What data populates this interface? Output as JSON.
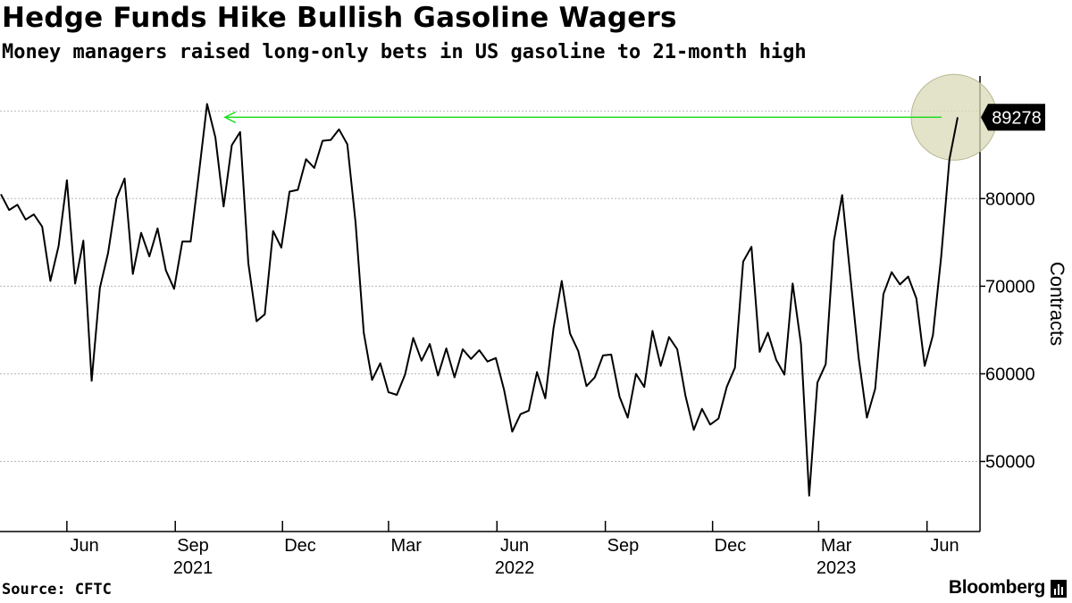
{
  "title": "Hedge Funds Hike Bullish Gasoline Wagers",
  "subtitle": "Money managers raised long-only bets in US gasoline to 21-month high",
  "source": "Source: CFTC",
  "brand": "Bloomberg",
  "chart_data": {
    "type": "line",
    "title": "Hedge Funds Hike Bullish Gasoline Wagers",
    "subtitle": "Money managers raised long-only bets in US gasoline to 21-month high",
    "ylabel": "Contracts",
    "ylim": [
      42000,
      94000
    ],
    "yticks": [
      50000,
      60000,
      70000,
      80000
    ],
    "y_axis_side": "right",
    "grid": true,
    "line_color": "#000000",
    "x_month_ticks": [
      "Jun",
      "Sep",
      "Dec",
      "Mar",
      "Jun",
      "Sep",
      "Dec",
      "Mar",
      "Jun"
    ],
    "x_year_labels": [
      {
        "label": "2021",
        "under_tick": 1
      },
      {
        "label": "2022",
        "under_tick": 4
      },
      {
        "label": "2023",
        "under_tick": 7
      }
    ],
    "start_date": "2021-04-06",
    "interval_days": 7,
    "values": [
      80500,
      78700,
      79300,
      77600,
      78200,
      76800,
      70600,
      74600,
      82100,
      70300,
      75200,
      59200,
      69800,
      73800,
      80000,
      82300,
      71400,
      76100,
      73400,
      76600,
      71800,
      69700,
      75100,
      75100,
      82800,
      90800,
      87000,
      79100,
      86100,
      87600,
      72600,
      66000,
      66800,
      76300,
      74400,
      80800,
      81000,
      84500,
      83500,
      86600,
      86700,
      87900,
      86200,
      77300,
      64700,
      59300,
      61200,
      57900,
      57600,
      59900,
      64100,
      61500,
      63400,
      59800,
      62900,
      59600,
      62800,
      61700,
      62700,
      61400,
      61800,
      58200,
      53400,
      55400,
      55800,
      60200,
      57200,
      65200,
      70600,
      64600,
      62600,
      58600,
      59600,
      62100,
      62200,
      57400,
      55000,
      60000,
      58500,
      64900,
      60900,
      64200,
      62800,
      57500,
      53600,
      56000,
      54200,
      54900,
      58500,
      60700,
      72800,
      74500,
      62500,
      64700,
      61600,
      59900,
      70300,
      63400,
      46100,
      59000,
      61100,
      75200,
      80400,
      71000,
      61800,
      55000,
      58300,
      69100,
      71600,
      70200,
      71100,
      68600,
      60900,
      64400,
      73300,
      84500,
      89278
    ],
    "last_value_label": "89278",
    "reference_line": {
      "value": 89278,
      "from_index": 25,
      "color": "#22dd22"
    },
    "highlight_color": "#d9d9b8"
  }
}
